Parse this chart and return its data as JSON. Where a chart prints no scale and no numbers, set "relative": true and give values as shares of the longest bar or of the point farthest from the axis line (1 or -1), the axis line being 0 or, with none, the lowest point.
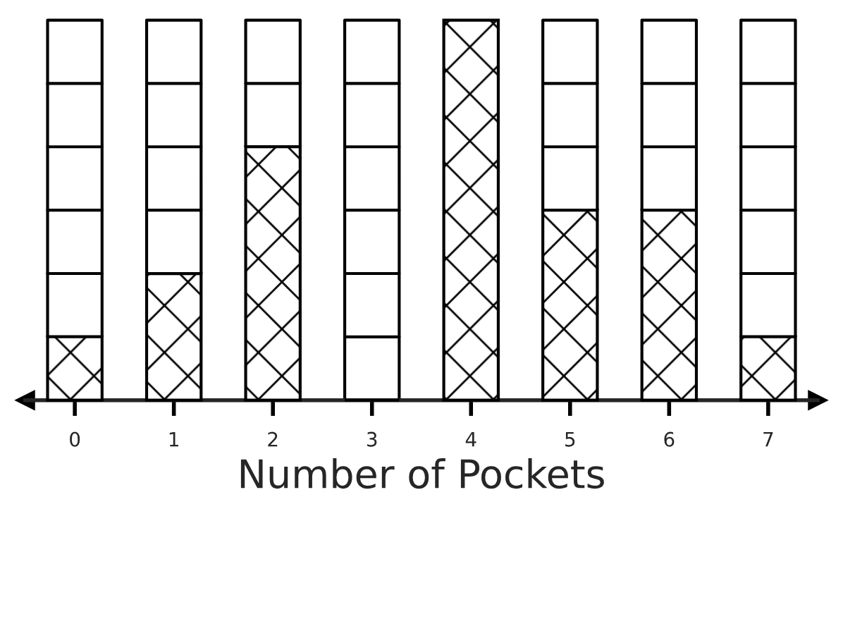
{
  "chart_data": {
    "type": "bar",
    "relative": true,
    "xlabel": "Number of Pockets",
    "x": [
      0,
      1,
      2,
      3,
      4,
      5,
      6,
      7
    ],
    "values": [
      0.167,
      0.333,
      0.667,
      0,
      1,
      0.5,
      0.5,
      0.167
    ],
    "color": "#000000",
    "xlim": [
      -0.5,
      7.5
    ],
    "xticks": [
      0,
      1,
      2,
      3,
      4,
      5,
      6,
      7
    ],
    "tick_labels": "x",
    "grid": false
  }
}
